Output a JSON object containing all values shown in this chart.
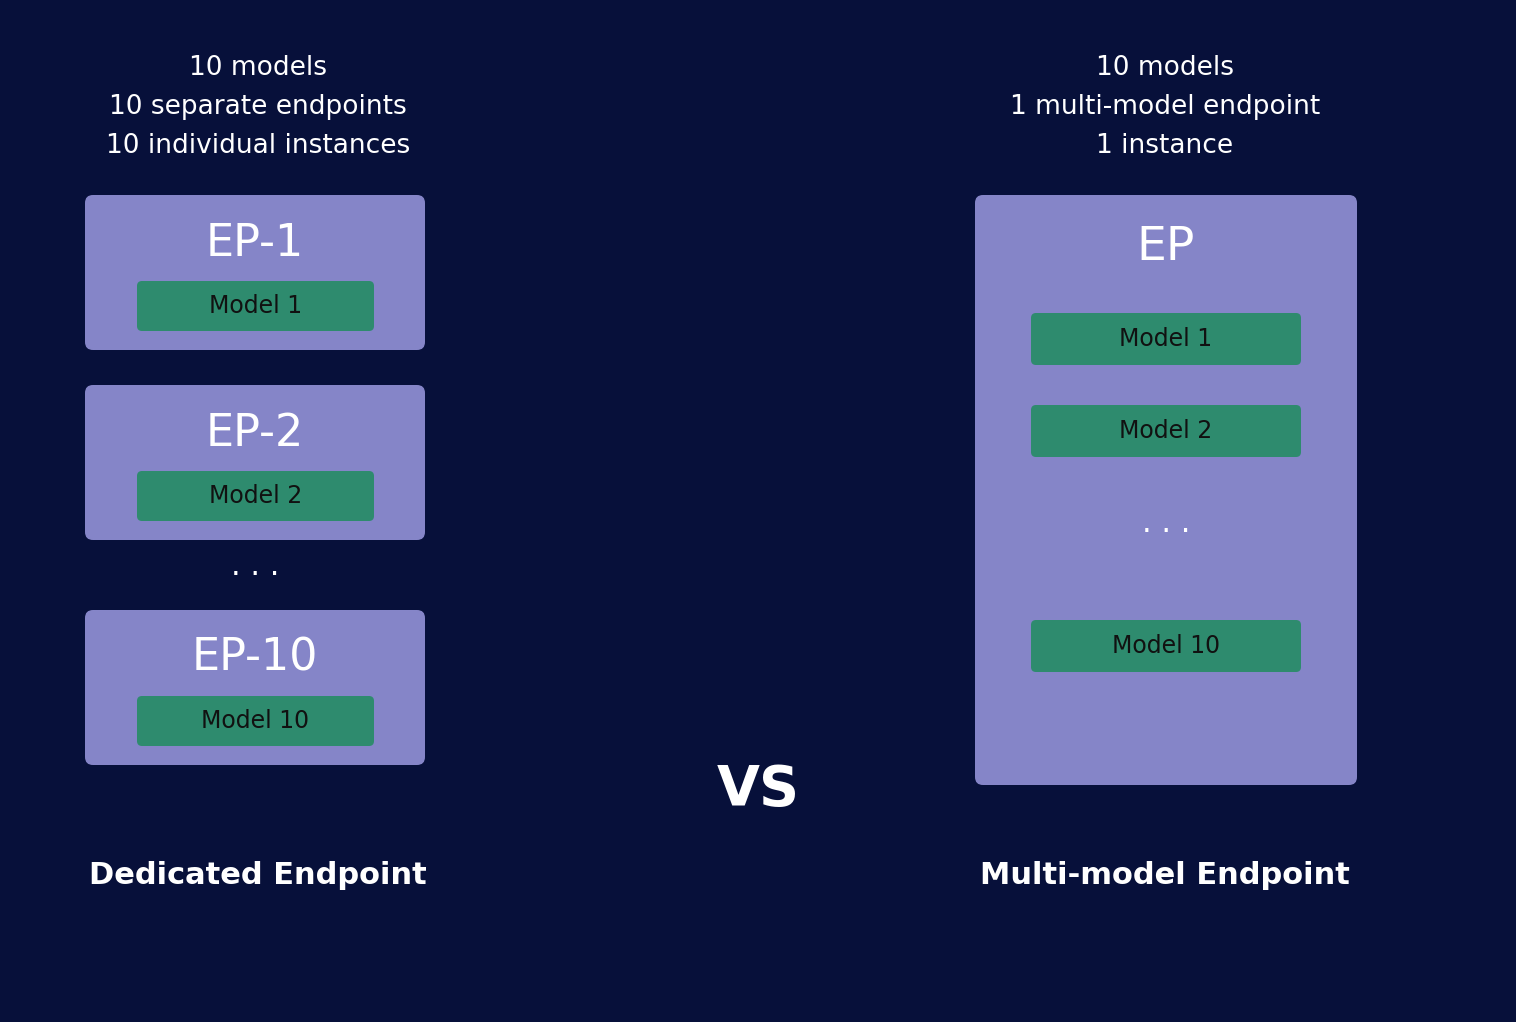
{
  "background_color": "#07103a",
  "left_panel_color": "#8585c8",
  "right_panel_color": "#8585c8",
  "model_box_color": "#2e8b6e",
  "text_color_white": "#ffffff",
  "text_color_dark": "#111111",
  "left_header": "10 models\n10 separate endpoints\n10 individual instances",
  "right_header": "10 models\n1 multi-model endpoint\n1 instance",
  "left_label": "Dedicated Endpoint",
  "right_label": "Multi-model Endpoint",
  "vs_text": "VS",
  "right_ep": "EP",
  "dots": ". . .",
  "left_ep_labels": [
    "EP-1",
    "EP-2",
    "EP-10"
  ],
  "left_model_labels": [
    "Model 1",
    "Model 2",
    "Model 10"
  ],
  "right_model_labels": [
    "Model 1",
    "Model 2",
    "Model 10"
  ]
}
